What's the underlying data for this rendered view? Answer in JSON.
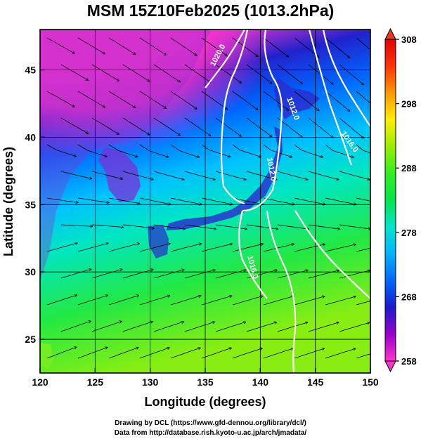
{
  "title": "MSM 15Z10Feb2025 (1013.2hPa)",
  "map": {
    "xlabel": "Longitude (degrees)",
    "ylabel": "Latitude  (degrees)",
    "xlim": [
      120,
      150
    ],
    "ylim": [
      22.5,
      48
    ],
    "xticks": [
      120,
      125,
      130,
      135,
      140,
      145,
      150
    ],
    "yticks": [
      25,
      30,
      35,
      40,
      45
    ],
    "grid": true
  },
  "colorbar": {
    "min": 258,
    "max": 308,
    "ticks": [
      258,
      268,
      278,
      288,
      298,
      308
    ],
    "colors": [
      "#ff33cc",
      "#9900cc",
      "#1a1acc",
      "#0066ff",
      "#00b3ff",
      "#00e6cc",
      "#00e64d",
      "#33ee22",
      "#99ee00",
      "#ffee00",
      "#ff9900",
      "#ff3300",
      "#e60000"
    ]
  },
  "isobars": [
    {
      "label": "1020.0"
    },
    {
      "label": "1012.0"
    },
    {
      "label": "1016.0"
    },
    {
      "label": "1016.0"
    },
    {
      "label": "1012.0"
    }
  ],
  "credits": {
    "line1": "Drawing by DCL (https://www.gfd-dennou.org/library/dcl/)",
    "line2": "Data from http://database.rish.kyoto-u.ac.jp/arch/jmadata/"
  }
}
